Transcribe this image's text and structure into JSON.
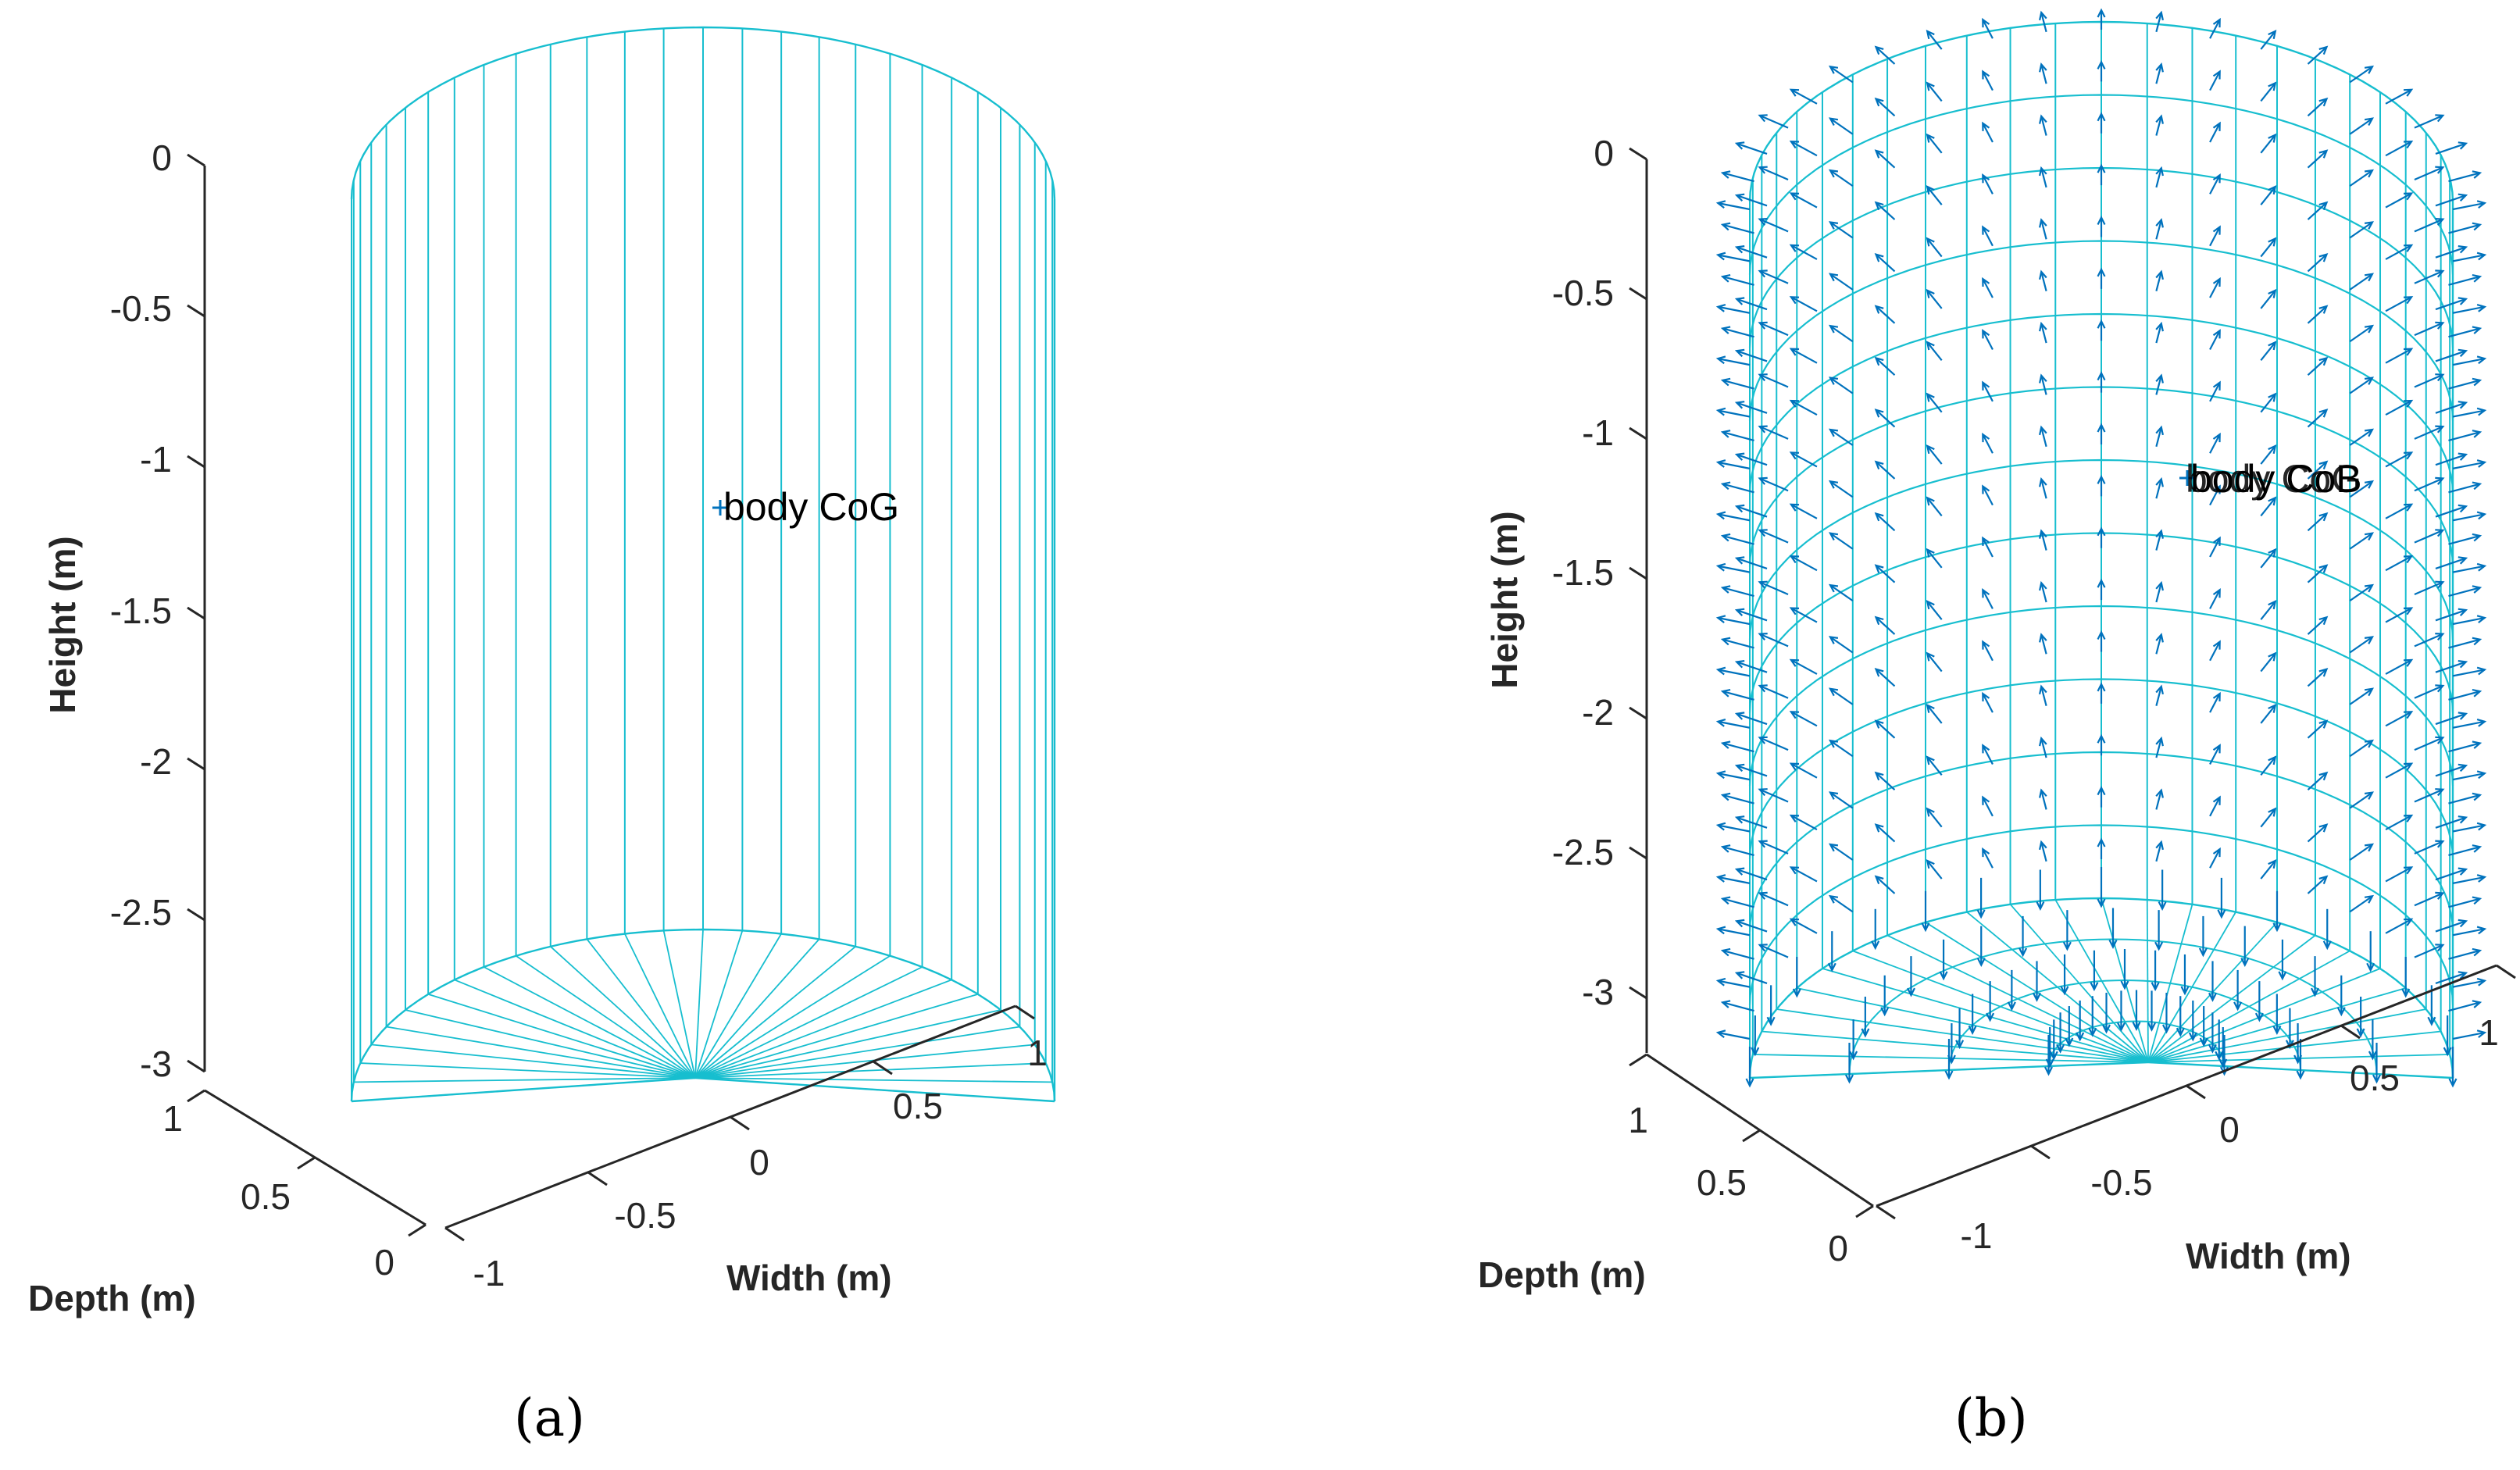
{
  "colors": {
    "mesh": "#17BECF",
    "arrow": "#0072BD",
    "axis": "#262626",
    "text": "#000000"
  },
  "panels": [
    {
      "id": "a",
      "caption": "(a)",
      "annotation": "body CoG",
      "axes": {
        "height_label": "Height (m)",
        "width_label": "Width (m)",
        "depth_label": "Depth (m)",
        "height_ticks": [
          "0",
          "-0.5",
          "-1",
          "-1.5",
          "-2",
          "-2.5",
          "-3"
        ],
        "width_ticks": [
          "-1",
          "-0.5",
          "0",
          "0.5",
          "1"
        ],
        "depth_ticks": [
          "0",
          "0.5",
          "1"
        ]
      }
    },
    {
      "id": "b",
      "caption": "(b)",
      "annotation": "body CoB",
      "annotation_overlay": "body CoG",
      "axes": {
        "height_label": "Height (m)",
        "width_label": "Width (m)",
        "depth_label": "Depth (m)",
        "height_ticks": [
          "0",
          "-0.5",
          "-1",
          "-1.5",
          "-2",
          "-2.5",
          "-3"
        ],
        "width_ticks": [
          "-1",
          "-0.5",
          "0",
          "0.5",
          "1"
        ],
        "depth_ticks": [
          "0",
          "0.5",
          "1"
        ]
      }
    }
  ]
}
